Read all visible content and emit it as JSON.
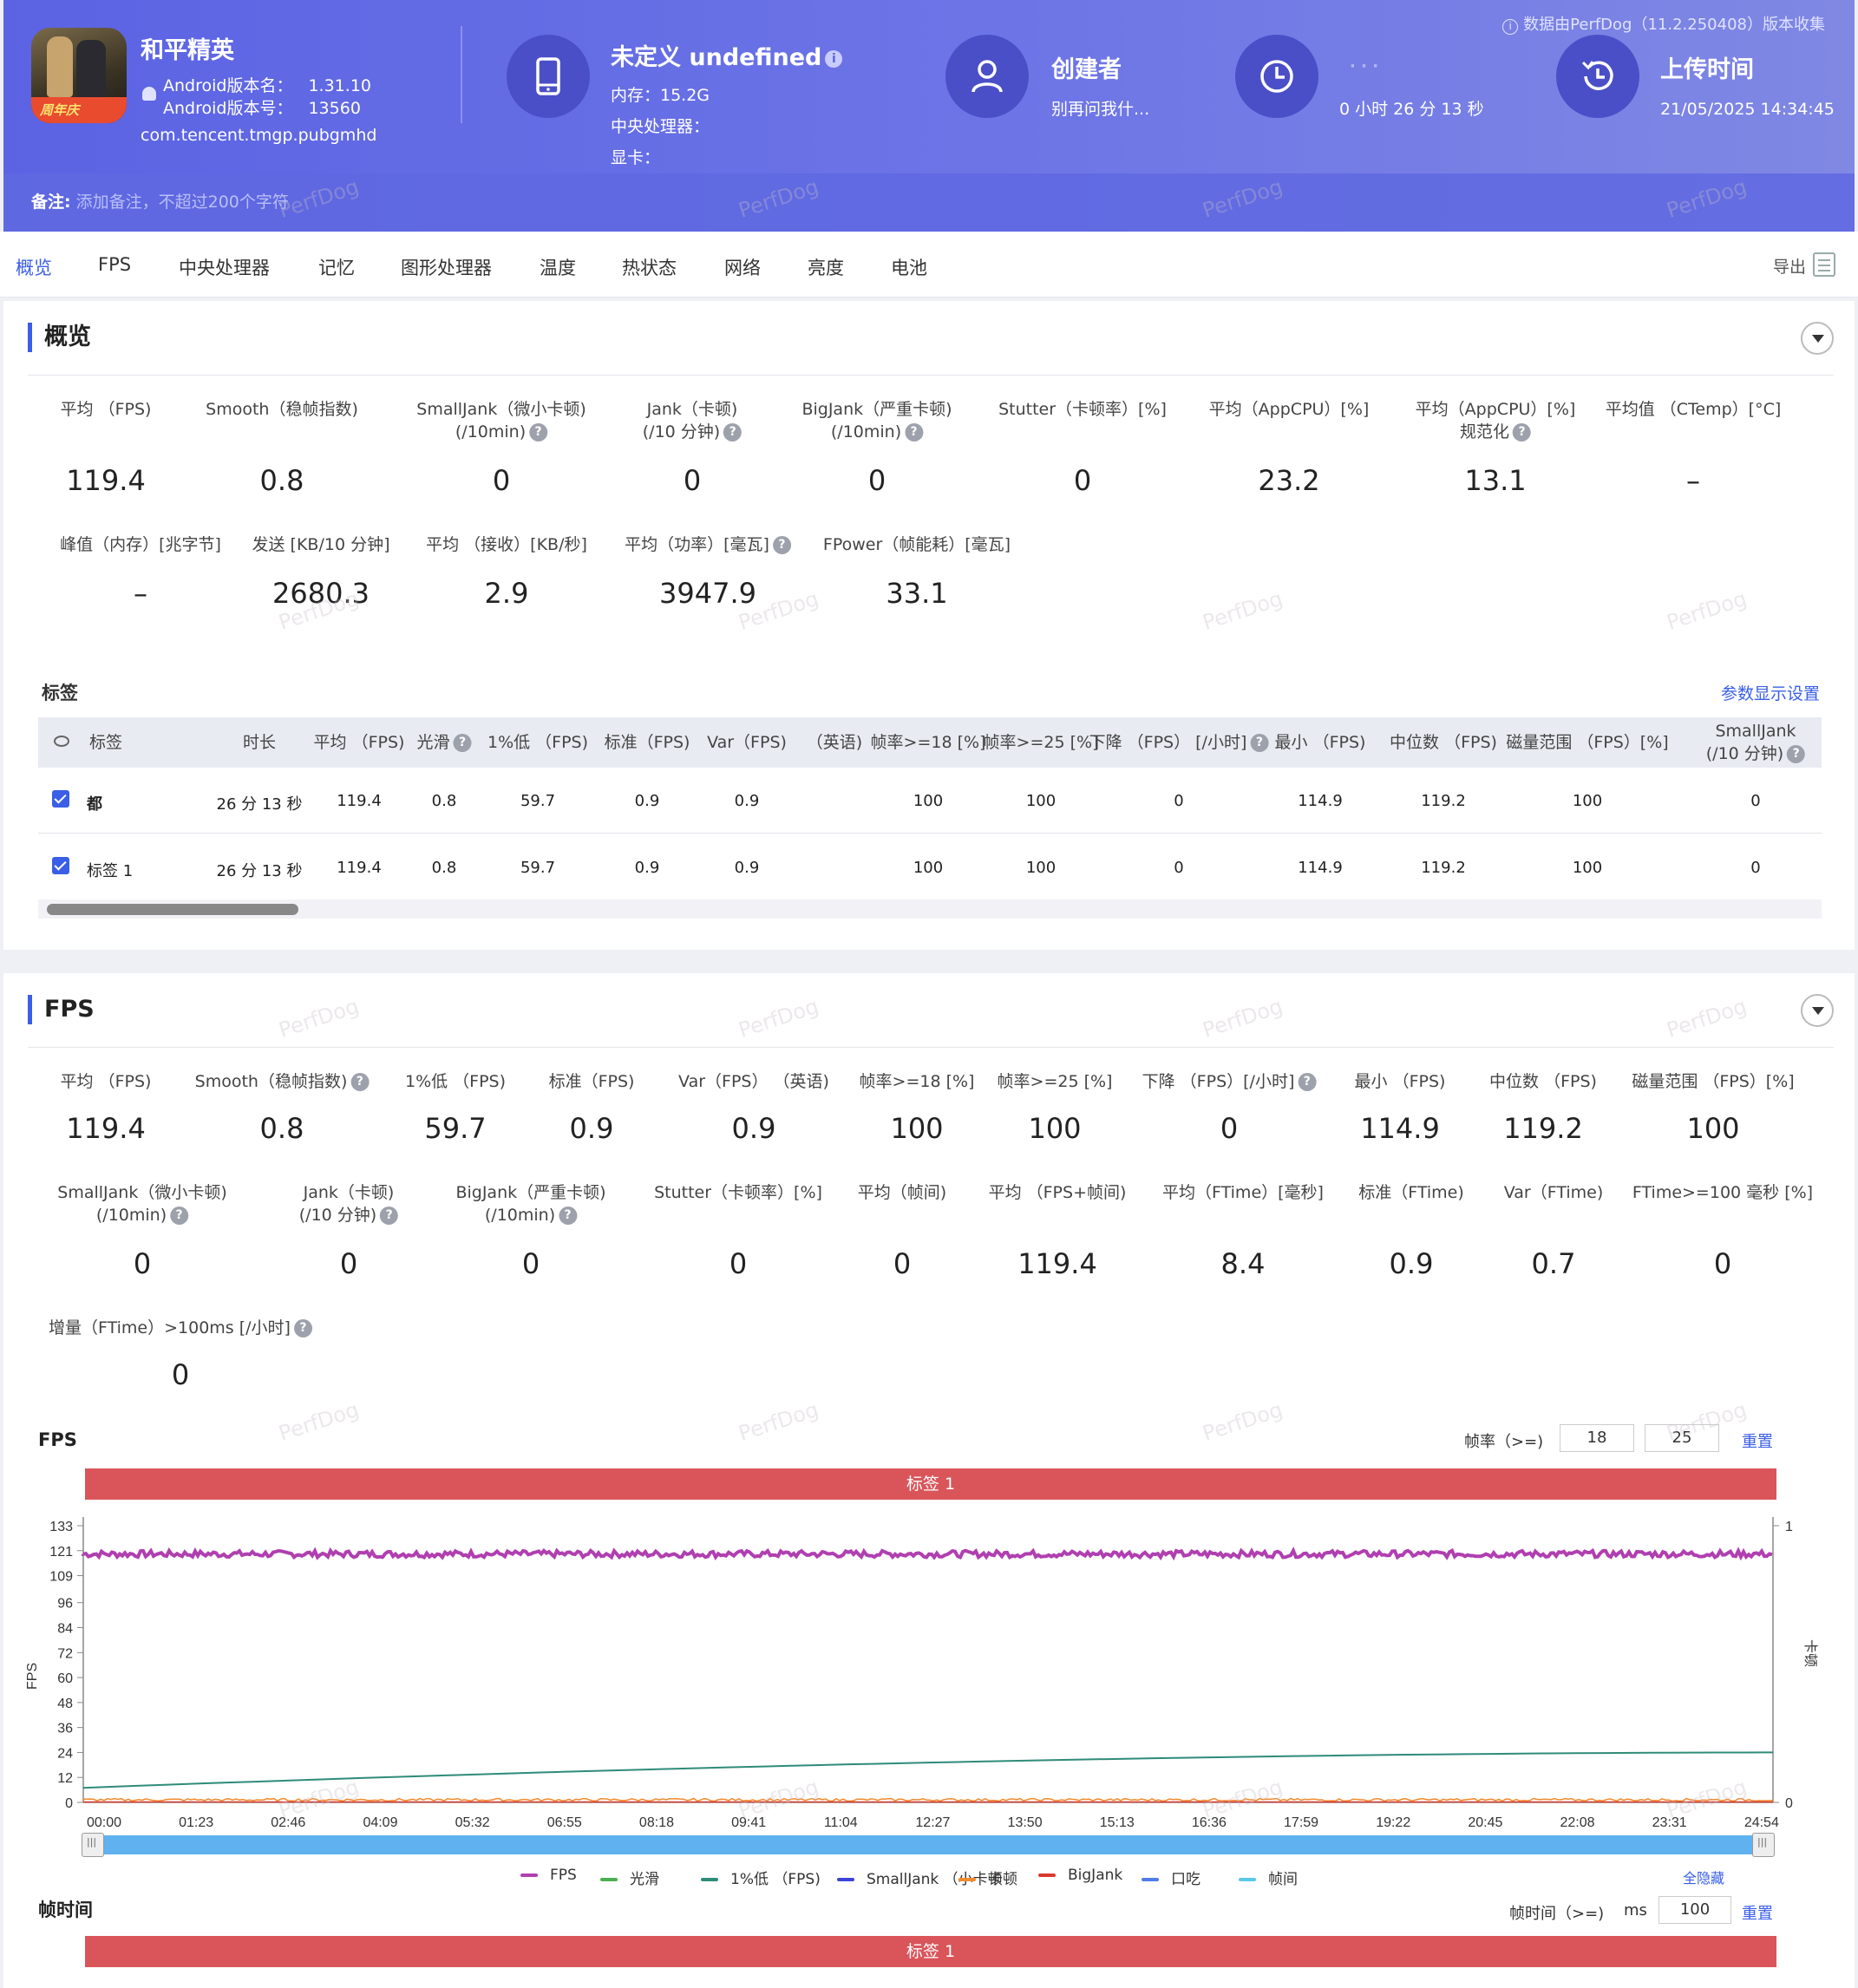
{
  "header": {
    "app_name": "和平精英",
    "android_version_name_label": "Android版本名：",
    "android_version_name": "1.31.10",
    "android_version_code_label": "Android版本号：",
    "android_version_code": "13560",
    "package": "com.tencent.tmgp.pubgmhd",
    "device_title": "未定义 undefined",
    "memory": "内存：15.2G",
    "cpu": "中央处理器：",
    "gpu": "显卡：",
    "creator_title": "创建者",
    "creator_sub": "别再问我什...",
    "duration_title": "· · ·",
    "duration": "0 小时 26 分 13 秒",
    "upload_title": "上传时间",
    "upload_time": "21/05/2025 14:34:45",
    "source": "数据由PerfDog（11.2.250408）版本收集",
    "note_label": "备注:",
    "note_placeholder": "添加备注，不超过200个字符",
    "icon_badge": "周年庆",
    "colors": {
      "header_start": "#5b63e3",
      "header_end": "#8088e4",
      "accent": "#3a5ee6"
    }
  },
  "tabs": [
    "概览",
    "FPS",
    "中央处理器",
    "记忆",
    "图形处理器",
    "温度",
    "热状态",
    "网络",
    "亮度",
    "电池"
  ],
  "export_label": "导出",
  "watermark": "PerfDog",
  "overview": {
    "title": "概览",
    "row1": [
      {
        "l1": "平均 （FPS)",
        "l2": "",
        "v": "119.4",
        "q": false
      },
      {
        "l1": "Smooth（稳帧指数)",
        "l2": "",
        "v": "0.8",
        "q": true
      },
      {
        "l1": "SmallJank（微小卡顿)",
        "l2": "(/10min)",
        "v": "0",
        "q": true
      },
      {
        "l1": "Jank（卡顿)",
        "l2": "(/10 分钟)",
        "v": "0",
        "q": true
      },
      {
        "l1": "BigJank（严重卡顿)",
        "l2": "(/10min)",
        "v": "0",
        "q": true
      },
      {
        "l1": "Stutter（卡顿率）[%]",
        "l2": "",
        "v": "0",
        "q": false
      },
      {
        "l1": "平均（AppCPU）[%]",
        "l2": "",
        "v": "23.2",
        "q": true
      },
      {
        "l1": "平均（AppCPU）[%]",
        "l2": "规范化",
        "v": "13.1",
        "q": true
      },
      {
        "l1": "平均值 （CTemp）[°C]",
        "l2": "",
        "v": "–",
        "q": false
      }
    ],
    "row2": [
      {
        "l1": "峰值（内存）[兆字节]",
        "v": "–",
        "q": false
      },
      {
        "l1": "发送 [KB/10 分钟]",
        "v": "2680.3",
        "q": false
      },
      {
        "l1": "平均 （接收）[KB/秒]",
        "v": "2.9",
        "q": false
      },
      {
        "l1": "平均（功率）[毫瓦]",
        "v": "3947.9",
        "q": true
      },
      {
        "l1": "FPower（帧能耗）[毫瓦]",
        "v": "33.1",
        "q": false
      }
    ]
  },
  "tags_table": {
    "title": "标签",
    "settings_link": "参数显示设置",
    "headers": [
      "标签",
      "时长",
      "平均 （FPS)",
      "光滑",
      "1%低 （FPS)",
      "标准（FPS)",
      "Var（FPS)",
      "（英语)",
      "帧率>=18 [%]",
      "帧率>=25 [%]",
      "下降 （FPS） [/小时]",
      "最小 （FPS)",
      "中位数 （FPS)",
      "磁量范围 （FPS）[%]",
      "SmallJank",
      "(/10 分钟)"
    ],
    "rows": [
      {
        "tag": "都",
        "duration": "26 分 13 秒",
        "avg": "119.4",
        "smooth": "0.8",
        "low1": "59.7",
        "std": "0.9",
        "var": "0.9",
        "ge18": "100",
        "ge25": "100",
        "drop": "0",
        "min": "114.9",
        "median": "119.2",
        "range": "100",
        "smalljank": "0"
      },
      {
        "tag": "标签 1",
        "duration": "26 分 13 秒",
        "avg": "119.4",
        "smooth": "0.8",
        "low1": "59.7",
        "std": "0.9",
        "var": "0.9",
        "ge18": "100",
        "ge25": "100",
        "drop": "0",
        "min": "114.9",
        "median": "119.2",
        "range": "100",
        "smalljank": "0"
      }
    ]
  },
  "fps_section": {
    "title": "FPS",
    "row1": [
      {
        "l1": "平均 （FPS)",
        "l2": "",
        "v": "119.4",
        "q": false
      },
      {
        "l1": "Smooth（稳帧指数)",
        "l2": "",
        "v": "0.8",
        "q": true
      },
      {
        "l1": "1%低 （FPS)",
        "l2": "",
        "v": "59.7",
        "q": false
      },
      {
        "l1": "标准（FPS)",
        "l2": "",
        "v": "0.9",
        "q": false
      },
      {
        "l1": "Var（FPS） （英语)",
        "l2": "",
        "v": "0.9",
        "q": false
      },
      {
        "l1": "帧率>=18 [%]",
        "l2": "",
        "v": "100",
        "q": false
      },
      {
        "l1": "帧率>=25 [%]",
        "l2": "",
        "v": "100",
        "q": false
      },
      {
        "l1": "下降 （FPS）[/小时]",
        "l2": "",
        "v": "0",
        "q": true
      },
      {
        "l1": "最小 （FPS)",
        "l2": "",
        "v": "114.9",
        "q": false
      },
      {
        "l1": "中位数 （FPS)",
        "l2": "",
        "v": "119.2",
        "q": false
      },
      {
        "l1": "磁量范围 （FPS）[%]",
        "l2": "",
        "v": "100",
        "q": false
      }
    ],
    "row2": [
      {
        "l1": "SmallJank（微小卡顿)",
        "l2": "(/10min)",
        "v": "0",
        "q": true
      },
      {
        "l1": "Jank（卡顿)",
        "l2": "(/10 分钟)",
        "v": "0",
        "q": true
      },
      {
        "l1": "BigJank（严重卡顿)",
        "l2": "(/10min)",
        "v": "0",
        "q": true
      },
      {
        "l1": "",
        "l2": "Stutter（卡顿率）[%]",
        "v": "0",
        "q": false
      },
      {
        "l1": "",
        "l2": "平均（帧间)",
        "v": "0",
        "q": false
      },
      {
        "l1": "",
        "l2": "平均 （FPS+帧间)",
        "v": "119.4",
        "q": false
      },
      {
        "l1": "",
        "l2": "平均（FTime）[毫秒]",
        "v": "8.4",
        "q": false
      },
      {
        "l1": "",
        "l2": "标准（FTime)",
        "v": "0.9",
        "q": false
      },
      {
        "l1": "",
        "l2": "Var（FTime)",
        "v": "0.7",
        "q": false
      },
      {
        "l1": "",
        "l2": "FTime>=100 毫秒 [%]",
        "v": "0",
        "q": false
      }
    ],
    "row3": [
      {
        "l1": "增量（FTime）>100ms [/小时]",
        "v": "0",
        "q": true
      }
    ]
  },
  "fps_chart_controls": {
    "title": "FPS",
    "threshold_label": "帧率（>=)",
    "threshold_1": "18",
    "threshold_2": "25",
    "reset": "重置",
    "tag_bar": "标签 1",
    "hide_all": "全隐藏"
  },
  "chart_data": {
    "type": "line",
    "title": "FPS",
    "ylabel": "FPS",
    "y2label": "卡顿",
    "yticks": [
      0,
      12,
      24,
      36,
      48,
      60,
      72,
      84,
      96,
      109,
      121,
      133
    ],
    "ylim": [
      0,
      133
    ],
    "y2ticks": [
      0,
      1
    ],
    "xticks": [
      "00:00",
      "01:23",
      "02:46",
      "04:09",
      "05:32",
      "06:55",
      "08:18",
      "09:41",
      "11:04",
      "12:27",
      "13:50",
      "15:13",
      "16:36",
      "17:59",
      "19:22",
      "20:45",
      "22:08",
      "23:31",
      "24:54"
    ],
    "grid": false,
    "legend_position": "bottom",
    "series": [
      {
        "name": "FPS",
        "color": "#b03fb0",
        "approx_value": 119.4,
        "min": 114.9
      },
      {
        "name": "光滑",
        "color": "#4caf50"
      },
      {
        "name": "1%低 （FPS)",
        "color": "#2e8b7a",
        "start": 7,
        "end": 24
      },
      {
        "name": "SmallJank （小卡顿",
        "color": "#3a45d6"
      },
      {
        "name": "卡顿",
        "color": "#f08a2c"
      },
      {
        "name": "BigJank",
        "color": "#d93a2e"
      },
      {
        "name": "口吃",
        "color": "#4f7de8"
      },
      {
        "name": "帧间",
        "color": "#5bc8e8"
      }
    ]
  },
  "frametime": {
    "title": "帧时间",
    "threshold_label": "帧时间（>=)",
    "unit": "ms",
    "threshold": "100",
    "reset": "重置",
    "tag_bar": "标签 1"
  }
}
